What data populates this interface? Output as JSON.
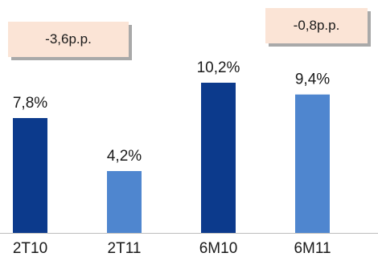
{
  "chart_data": {
    "type": "bar",
    "categories": [
      "2T10",
      "2T11",
      "6M10",
      "6M11"
    ],
    "values": [
      7.8,
      4.2,
      10.2,
      9.4
    ],
    "value_labels": [
      "7,8%",
      "4,2%",
      "10,2%",
      "9,4%"
    ],
    "bar_colors": [
      "#0c3a8c",
      "#4f86cf",
      "#0c3a8c",
      "#4f86cf"
    ],
    "ylim": [
      0,
      10.2
    ],
    "grid": false,
    "annotations": [
      "-3,6p.p.",
      "-0,8p.p."
    ]
  },
  "colors": {
    "dark_blue": "#0c3a8c",
    "light_blue": "#4f86cf",
    "callout_fill": "#fbe4d6",
    "baseline": "#bdbdbd"
  }
}
